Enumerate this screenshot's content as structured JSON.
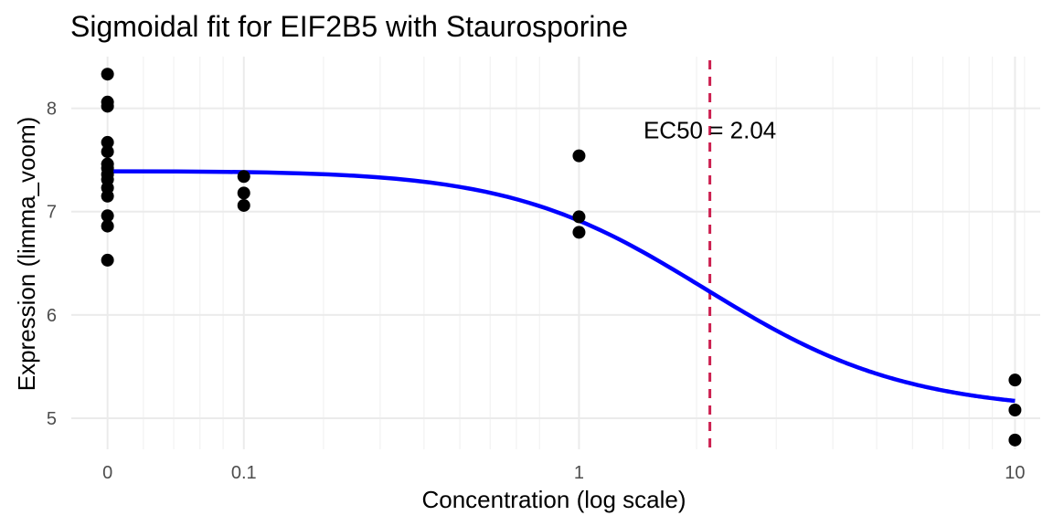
{
  "chart_data": {
    "type": "scatter",
    "title": "Sigmoidal fit for EIF2B5 with Staurosporine",
    "xlabel": "Concentration (log scale)",
    "ylabel": "Expression (limma_voom)",
    "x_scale": "log10 (x + 0.1)",
    "xlim": [
      0,
      10
    ],
    "ylim": [
      4.7,
      8.5
    ],
    "x_ticks": [
      {
        "value": 0,
        "label": "0"
      },
      {
        "value": 0.1,
        "label": "0.1"
      },
      {
        "value": 1,
        "label": "1"
      },
      {
        "value": 10,
        "label": "10"
      }
    ],
    "y_ticks": [
      {
        "value": 5,
        "label": "5"
      },
      {
        "value": 6,
        "label": "6"
      },
      {
        "value": 7,
        "label": "7"
      },
      {
        "value": 8,
        "label": "8"
      }
    ],
    "grid": true,
    "points": [
      {
        "x": 0,
        "y": 8.33
      },
      {
        "x": 0,
        "y": 8.06
      },
      {
        "x": 0,
        "y": 8.02
      },
      {
        "x": 0,
        "y": 7.67
      },
      {
        "x": 0,
        "y": 7.58
      },
      {
        "x": 0,
        "y": 7.46
      },
      {
        "x": 0,
        "y": 7.42
      },
      {
        "x": 0,
        "y": 7.36
      },
      {
        "x": 0,
        "y": 7.31
      },
      {
        "x": 0,
        "y": 7.23
      },
      {
        "x": 0,
        "y": 7.15
      },
      {
        "x": 0,
        "y": 6.96
      },
      {
        "x": 0,
        "y": 6.86
      },
      {
        "x": 0,
        "y": 6.53
      },
      {
        "x": 0.1,
        "y": 7.34
      },
      {
        "x": 0.1,
        "y": 7.18
      },
      {
        "x": 0.1,
        "y": 7.06
      },
      {
        "x": 1,
        "y": 7.54
      },
      {
        "x": 1,
        "y": 6.95
      },
      {
        "x": 1,
        "y": 6.8
      },
      {
        "x": 10,
        "y": 5.37
      },
      {
        "x": 10,
        "y": 5.08
      },
      {
        "x": 10,
        "y": 4.79
      }
    ],
    "fit": {
      "name": "sigmoid",
      "top": 7.39,
      "bottom": 5.06,
      "ec50": 2.04,
      "hill": 1.9,
      "color": "#0000ff"
    },
    "ec50_line": {
      "x": 2.04,
      "color": "#cc1f4f",
      "style": "dashed"
    },
    "annotation": {
      "text": "EC50 = 2.04",
      "x": 2.04,
      "y": 7.79
    },
    "point_color": "#000000"
  }
}
